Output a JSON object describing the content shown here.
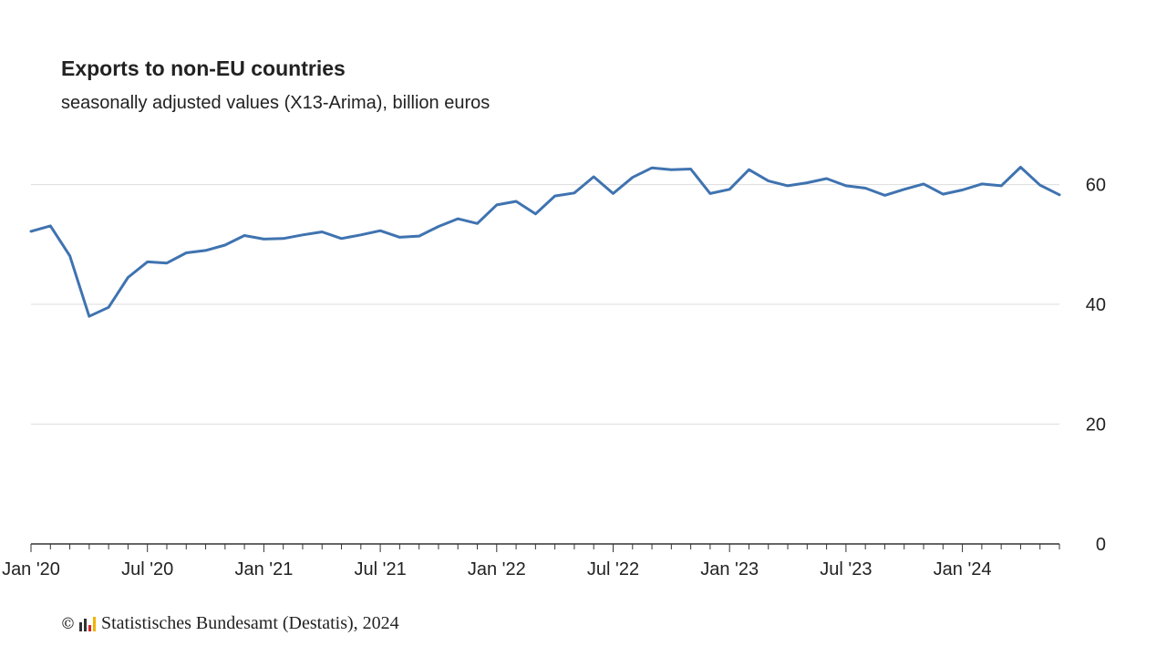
{
  "chart_data": {
    "type": "line",
    "title": "Exports to non-EU countries",
    "subtitle": "seasonally adjusted values (X13-Arima), billion euros",
    "xlabel": "",
    "ylabel": "",
    "x": [
      "2020-01",
      "2020-02",
      "2020-03",
      "2020-04",
      "2020-05",
      "2020-06",
      "2020-07",
      "2020-08",
      "2020-09",
      "2020-10",
      "2020-11",
      "2020-12",
      "2021-01",
      "2021-02",
      "2021-03",
      "2021-04",
      "2021-05",
      "2021-06",
      "2021-07",
      "2021-08",
      "2021-09",
      "2021-10",
      "2021-11",
      "2021-12",
      "2022-01",
      "2022-02",
      "2022-03",
      "2022-04",
      "2022-05",
      "2022-06",
      "2022-07",
      "2022-08",
      "2022-09",
      "2022-10",
      "2022-11",
      "2022-12",
      "2023-01",
      "2023-02",
      "2023-03",
      "2023-04",
      "2023-05",
      "2023-06",
      "2023-07",
      "2023-08",
      "2023-09",
      "2023-10",
      "2023-11",
      "2023-12",
      "2024-01",
      "2024-02",
      "2024-03",
      "2024-04",
      "2024-05",
      "2024-06"
    ],
    "series": [
      {
        "values": [
          52.2,
          53.1,
          48.1,
          38.0,
          39.5,
          44.5,
          47.1,
          46.9,
          48.6,
          49.0,
          49.9,
          51.5,
          50.9,
          51.0,
          51.6,
          52.1,
          51.0,
          51.6,
          52.3,
          51.2,
          51.4,
          53.0,
          54.3,
          53.5,
          56.6,
          57.2,
          55.1,
          58.1,
          58.6,
          61.3,
          58.5,
          61.2,
          62.8,
          62.5,
          62.6,
          58.5,
          59.2,
          62.5,
          60.6,
          59.8,
          60.3,
          61.0,
          59.8,
          59.4,
          58.2,
          59.2,
          60.1,
          58.4,
          59.1,
          60.1,
          59.8,
          62.9,
          59.9,
          58.3
        ],
        "color": "#3f73b0"
      }
    ],
    "ylim": [
      0,
      68
    ],
    "yticks": [
      "0",
      "20",
      "40",
      "60"
    ],
    "xtick_labels": [
      {
        "index": 0,
        "label": "Jan '20"
      },
      {
        "index": 6,
        "label": "Jul '20"
      },
      {
        "index": 12,
        "label": "Jan '21"
      },
      {
        "index": 18,
        "label": "Jul '21"
      },
      {
        "index": 24,
        "label": "Jan '22"
      },
      {
        "index": 30,
        "label": "Jul '22"
      },
      {
        "index": 36,
        "label": "Jan '23"
      },
      {
        "index": 42,
        "label": "Jul '23"
      },
      {
        "index": 48,
        "label": "Jan '24"
      }
    ],
    "grid": true,
    "y_axis_side": "right"
  },
  "source": {
    "copyright": "©",
    "text": "Statistisches Bundesamt (Destatis), 2024"
  },
  "colors": {
    "line": "#3f73b0",
    "grid": "#dddddd",
    "axis": "#333333",
    "logo_dark": "#333333",
    "logo_red": "#d4252b",
    "logo_yellow": "#f0b400"
  }
}
